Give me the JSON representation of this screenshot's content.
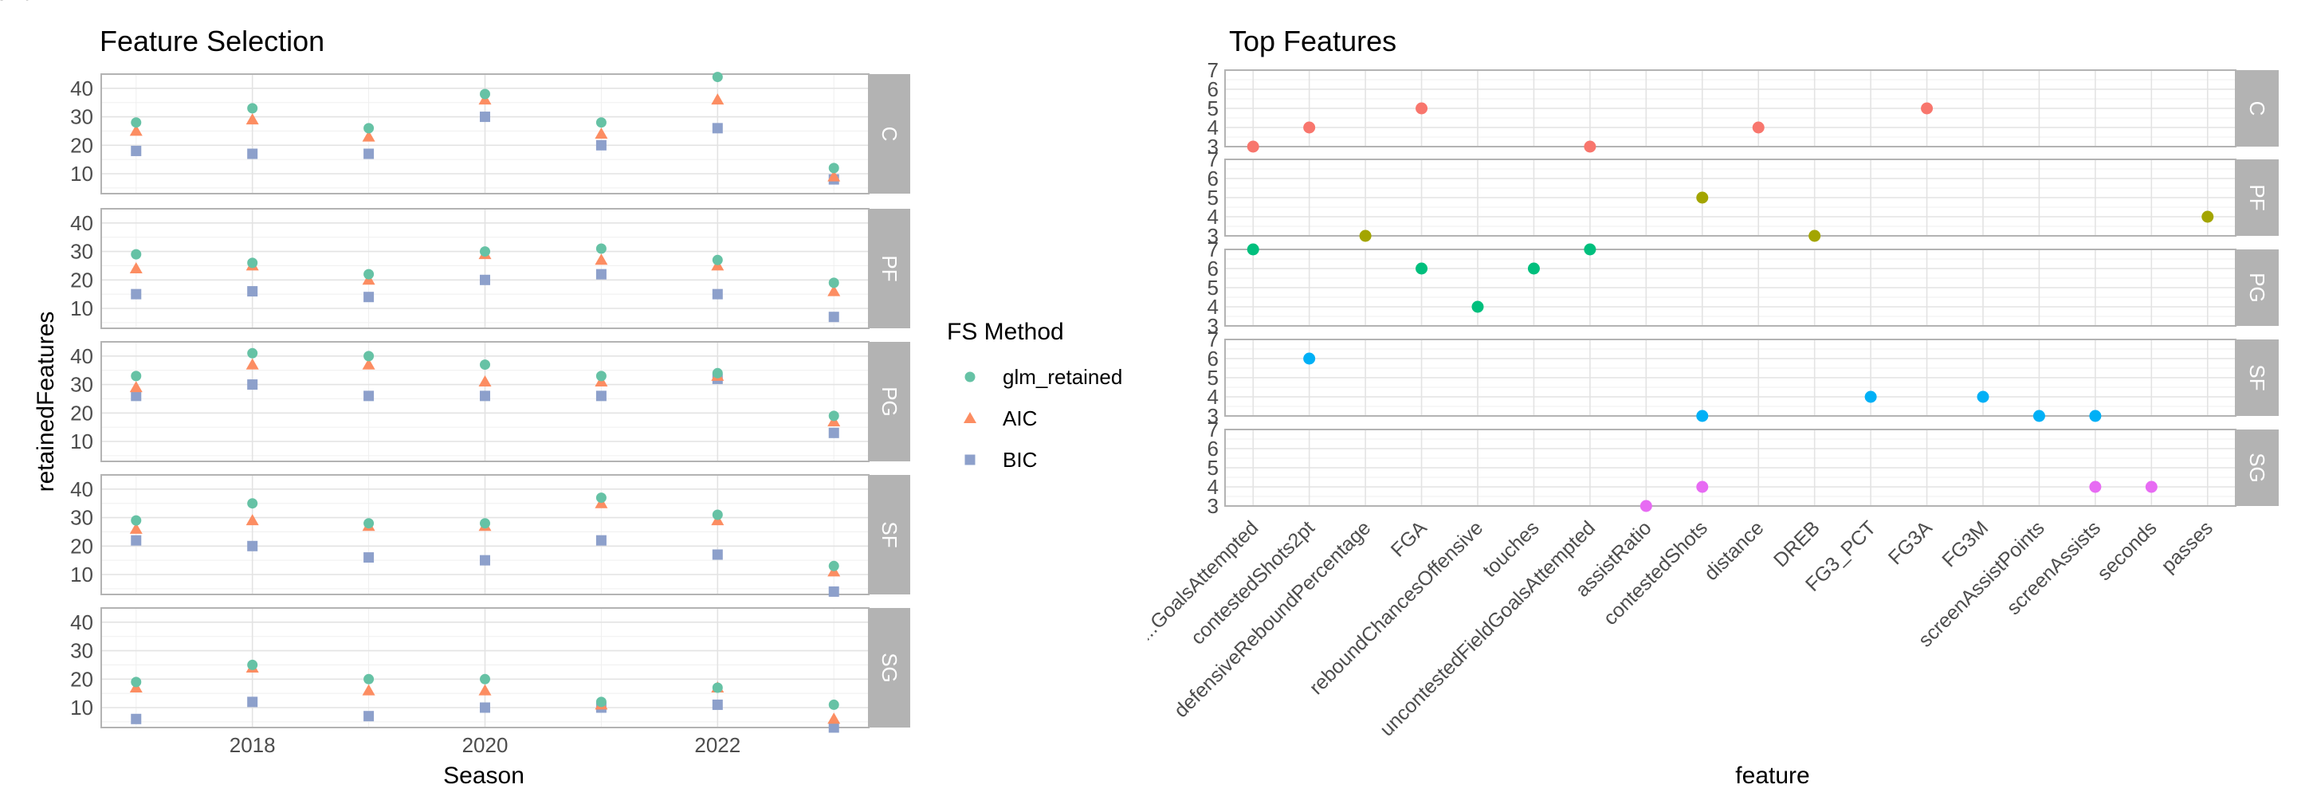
{
  "colors": {
    "glm_retained": "#66C2A5",
    "AIC": "#FC8D62",
    "BIC": "#8DA0CB",
    "strip_bg": "#B3B3B3",
    "strip_text": "#FFFFFF",
    "grid": "#E3E3E3",
    "panel_border": "#B3B3B3",
    "pos_C": "#F8766D",
    "pos_PF": "#A3A500",
    "pos_PG": "#00BF7D",
    "pos_SF": "#00B0F6",
    "pos_SG": "#E76BF3"
  },
  "legend": {
    "title": "FS Method",
    "items": [
      {
        "label": "glm_retained",
        "shape": "circle"
      },
      {
        "label": "AIC",
        "shape": "triangle"
      },
      {
        "label": "BIC",
        "shape": "square"
      }
    ]
  },
  "chart_data": [
    {
      "type": "scatter",
      "title": "Feature Selection",
      "xlabel": "Season",
      "ylabel": "retainedFeatures",
      "facets": [
        "C",
        "PF",
        "PG",
        "SF",
        "SG"
      ],
      "xlim": [
        2016.7,
        2023.3
      ],
      "ylim": [
        3,
        45
      ],
      "x_ticks": [
        2018,
        2020,
        2022
      ],
      "y_ticks": [
        10,
        20,
        30,
        40
      ],
      "seasons": [
        2017,
        2018,
        2019,
        2020,
        2021,
        2022,
        2023
      ],
      "series": [
        {
          "name": "glm_retained",
          "values": {
            "C": [
              28,
              33,
              26,
              38,
              28,
              44,
              12
            ],
            "PF": [
              29,
              26,
              22,
              30,
              31,
              27,
              19
            ],
            "PG": [
              33,
              41,
              40,
              37,
              33,
              34,
              19
            ],
            "SF": [
              29,
              35,
              28,
              28,
              37,
              31,
              13
            ],
            "SG": [
              19,
              25,
              20,
              20,
              12,
              17,
              11
            ]
          }
        },
        {
          "name": "AIC",
          "values": {
            "C": [
              25,
              29,
              23,
              36,
              24,
              36,
              9
            ],
            "PF": [
              24,
              25,
              20,
              29,
              27,
              25,
              16
            ],
            "PG": [
              29,
              37,
              37,
              31,
              31,
              33,
              17
            ],
            "SF": [
              26,
              29,
              27,
              27,
              35,
              29,
              11
            ],
            "SG": [
              17,
              24,
              16,
              16,
              11,
              17,
              6
            ]
          }
        },
        {
          "name": "BIC",
          "values": {
            "C": [
              18,
              17,
              17,
              30,
              20,
              26,
              8
            ],
            "PF": [
              15,
              16,
              14,
              20,
              22,
              15,
              7
            ],
            "PG": [
              26,
              30,
              26,
              26,
              26,
              32,
              13
            ],
            "SF": [
              22,
              20,
              16,
              15,
              22,
              17,
              4
            ],
            "SG": [
              6,
              12,
              7,
              10,
              10,
              11,
              3
            ]
          }
        }
      ]
    },
    {
      "type": "scatter",
      "title": "Top Features",
      "xlabel": "feature",
      "ylabel": "count",
      "facets": [
        "C",
        "PF",
        "PG",
        "SF",
        "SG"
      ],
      "ylim": [
        3,
        7
      ],
      "y_ticks": [
        3,
        4,
        5,
        6,
        7
      ],
      "categories": [
        "...GoalsAttempted",
        "contestedShots2pt",
        "defensiveReboundPercentage",
        "FGA",
        "reboundChancesOffensive",
        "touches",
        "uncontestedFieldGoalsAttempted",
        "assistRatio",
        "contestedShots",
        "distance",
        "DREB",
        "FG3_PCT",
        "FG3A",
        "FG3M",
        "screenAssistPoints",
        "screenAssists",
        "seconds",
        "passes"
      ],
      "points": {
        "C": [
          [
            "...GoalsAttempted",
            3
          ],
          [
            "contestedShots2pt",
            4
          ],
          [
            "FGA",
            5
          ],
          [
            "uncontestedFieldGoalsAttempted",
            3
          ],
          [
            "distance",
            4
          ],
          [
            "FG3A",
            5
          ]
        ],
        "PF": [
          [
            "defensiveReboundPercentage",
            3
          ],
          [
            "contestedShots",
            5
          ],
          [
            "DREB",
            3
          ],
          [
            "passes",
            4
          ]
        ],
        "PG": [
          [
            "...GoalsAttempted",
            7
          ],
          [
            "FGA",
            6
          ],
          [
            "reboundChancesOffensive",
            4
          ],
          [
            "touches",
            6
          ],
          [
            "uncontestedFieldGoalsAttempted",
            7
          ]
        ],
        "SF": [
          [
            "contestedShots2pt",
            6
          ],
          [
            "contestedShots",
            3
          ],
          [
            "FG3_PCT",
            4
          ],
          [
            "FG3M",
            4
          ],
          [
            "screenAssistPoints",
            3
          ],
          [
            "screenAssists",
            3
          ]
        ],
        "SG": [
          [
            "assistRatio",
            3
          ],
          [
            "contestedShots",
            4
          ],
          [
            "screenAssists",
            4
          ],
          [
            "seconds",
            4
          ]
        ]
      }
    }
  ]
}
